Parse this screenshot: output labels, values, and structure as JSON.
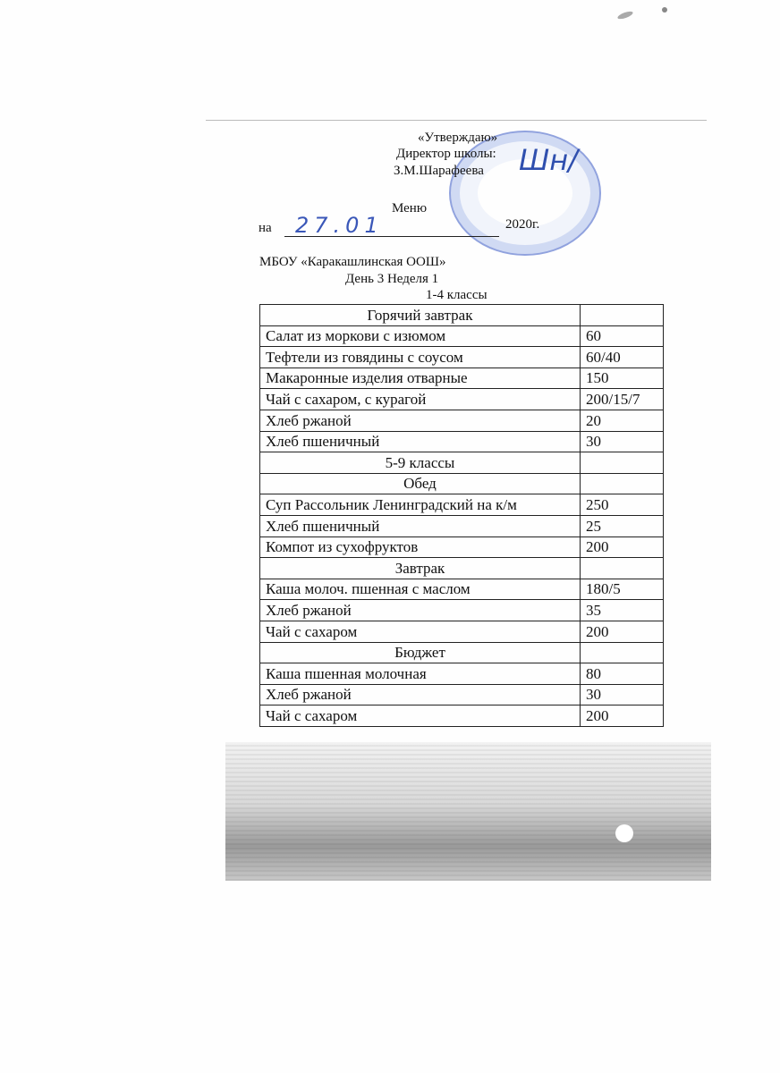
{
  "header": {
    "approve": "«Утверждаю»",
    "director": "Директор школы:",
    "name": "З.М.Шарафеева",
    "title": "Меню",
    "on": "на",
    "date_handwritten": "27.01",
    "year": "2020г.",
    "school": "МБОУ «Каракашлинская ООШ»",
    "day_week": "День 3 Неделя  1",
    "grades": "1-4 классы"
  },
  "stamp_color": "#3a57b8",
  "table": {
    "rows": [
      {
        "name": "Горячий завтрак",
        "value": "",
        "section": true
      },
      {
        "name": "Салат из моркови с изюмом",
        "value": "60"
      },
      {
        "name": "Тефтели из говядины с соусом",
        "value": "60/40"
      },
      {
        "name": "Макаронные изделия отварные",
        "value": "150"
      },
      {
        "name": "Чай с сахаром, с курагой",
        "value": "200/15/7"
      },
      {
        "name": "Хлеб ржаной",
        "value": "20"
      },
      {
        "name": "Хлеб пшеничный",
        "value": "30"
      },
      {
        "name": "5-9 классы",
        "value": "",
        "section": true
      },
      {
        "name": "Обед",
        "value": "",
        "section": true
      },
      {
        "name": "Суп Рассольник Ленинградский на к/м",
        "value": "250"
      },
      {
        "name": "Хлеб пшеничный",
        "value": "25"
      },
      {
        "name": "Компот из сухофруктов",
        "value": "200"
      },
      {
        "name": "Завтрак",
        "value": "",
        "section": true
      },
      {
        "name": "Каша молоч. пшенная с маслом",
        "value": "180/5"
      },
      {
        "name": "Хлеб ржаной",
        "value": "35"
      },
      {
        "name": "Чай с сахаром",
        "value": "200"
      },
      {
        "name": "Бюджет",
        "value": "",
        "section": true
      },
      {
        "name": "Каша пшенная молочная",
        "value": "80"
      },
      {
        "name": "Хлеб ржаной",
        "value": "30"
      },
      {
        "name": "Чай с сахаром",
        "value": "200"
      }
    ]
  }
}
